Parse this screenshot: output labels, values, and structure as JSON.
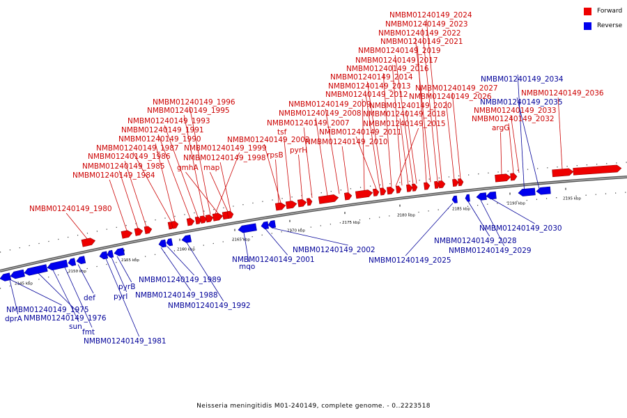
{
  "legend": {
    "forward_label": "Forward",
    "reverse_label": "Reverse",
    "forward_color": "#ee0000",
    "reverse_color": "#0000ee"
  },
  "caption": "Neisseria meningitidis M01-240149, complete genome. - 0..2223518",
  "chart_data": {
    "type": "linear genome map",
    "axis_unit": "kbp",
    "ticks": [
      "2145 kbp",
      "2150 kbp",
      "2155 kbp",
      "2160 kbp",
      "2165 kbp",
      "2170 kbp",
      "2175 kbp",
      "2180 kbp",
      "2185 kbp",
      "2190 kbp",
      "2195 kbp"
    ],
    "forward_genes": [
      "NMBM01240149_1980",
      "NMBM01240149_1984",
      "NMBM01240149_1985",
      "NMBM01240149_1986",
      "NMBM01240149_1987",
      "NMBM01240149_1990",
      "NMBM01240149_1991",
      "NMBM01240149_1993",
      "NMBM01240149_1995",
      "NMBM01240149_1996",
      "gmhA",
      "map",
      "NMBM01240149_1998",
      "NMBM01240149_1999",
      "NMBM01240149_2003",
      "rpsB",
      "tsf",
      "pyrH",
      "NMBM01240149_2007",
      "NMBM01240149_2008",
      "NMBM01240149_2009",
      "NMBM01240149_2010",
      "NMBM01240149_2011",
      "NMBM01240149_2012",
      "NMBM01240149_2013",
      "NMBM01240149_2014",
      "NMBM01240149_2015",
      "NMBM01240149_2016",
      "NMBM01240149_2017",
      "NMBM01240149_2018",
      "NMBM01240149_2019",
      "NMBM01240149_2020",
      "NMBM01240149_2021",
      "NMBM01240149_2022",
      "NMBM01240149_2023",
      "NMBM01240149_2024",
      "NMBM01240149_2026",
      "NMBM01240149_2027",
      "argG",
      "NMBM01240149_2032",
      "NMBM01240149_2033",
      "NMBM01240149_2036"
    ],
    "reverse_genes": [
      "NMBM01240149_1975",
      "dprA",
      "NMBM01240149_1976",
      "sun",
      "fmt",
      "def",
      "NMBM01240149_1981",
      "pyrI",
      "pyrB",
      "NMBM01240149_1988",
      "NMBM01240149_1989",
      "NMBM01240149_1992",
      "mqo",
      "NMBM01240149_2001",
      "NMBM01240149_2002",
      "NMBM01240149_2025",
      "NMBM01240149_2028",
      "NMBM01240149_2029",
      "NMBM01240149_2030",
      "NMBM01240149_2034",
      "NMBM01240149_2035"
    ]
  }
}
